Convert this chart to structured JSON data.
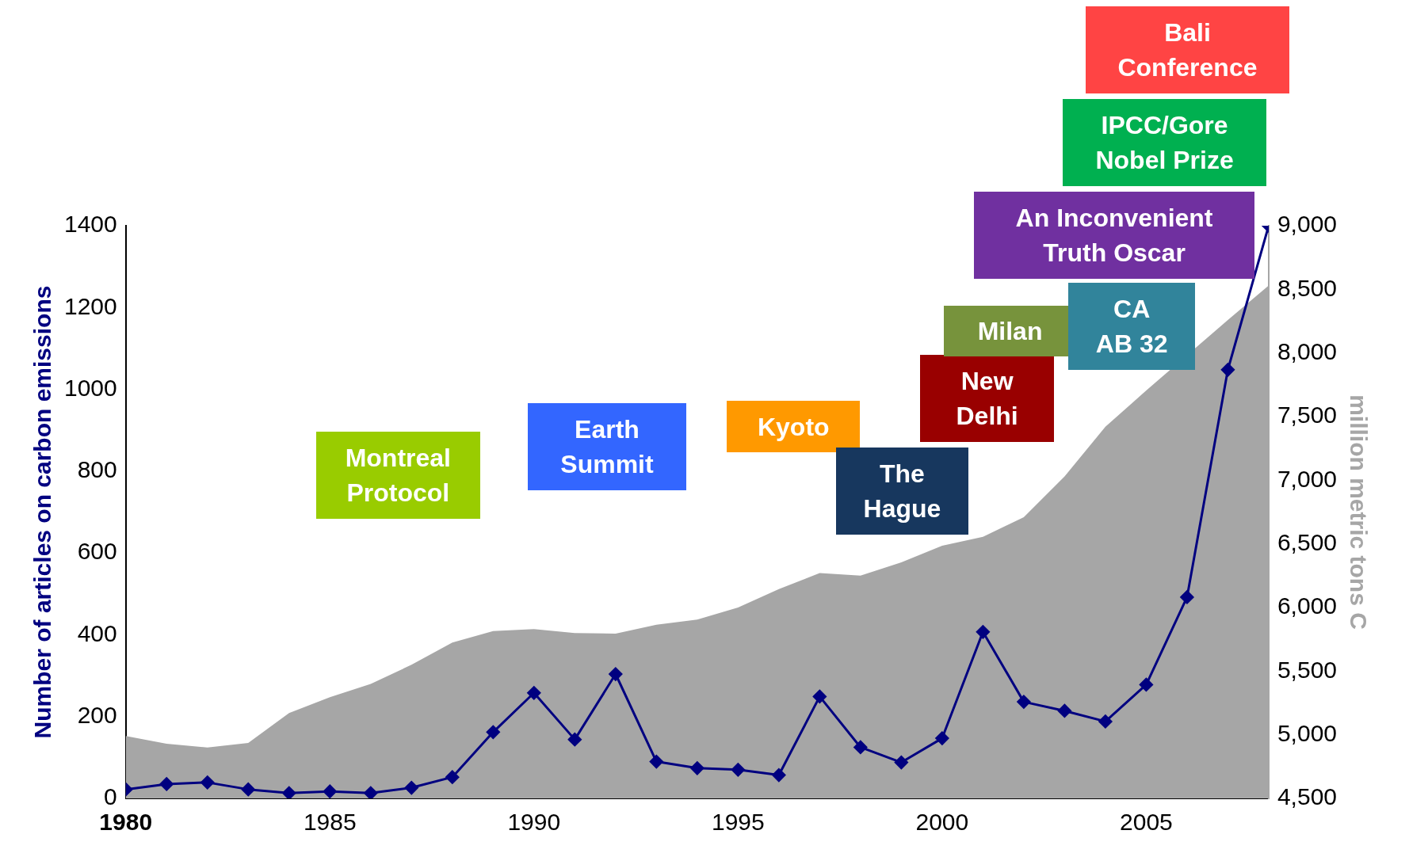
{
  "chart_data": {
    "type": "line",
    "ylabel": "Number of articles on carbon emissions",
    "y2label": "million metric tons C",
    "x": [
      1980,
      1981,
      1982,
      1983,
      1984,
      1985,
      1986,
      1987,
      1988,
      1989,
      1990,
      1991,
      1992,
      1993,
      1994,
      1995,
      1996,
      1997,
      1998,
      1999,
      2000,
      2001,
      2002,
      2003,
      2004,
      2005,
      2006,
      2007,
      2008
    ],
    "series": [
      {
        "type": "area",
        "axis": "y2",
        "color": "#a6a6a6",
        "values": [
          4990,
          4930,
          4900,
          4935,
          5170,
          5295,
          5400,
          5550,
          5725,
          5815,
          5830,
          5800,
          5795,
          5865,
          5905,
          6000,
          6145,
          6270,
          6250,
          6355,
          6485,
          6555,
          6710,
          7030,
          7420,
          7705,
          null,
          8260,
          8530
        ]
      },
      {
        "type": "line",
        "color": "#000080",
        "marker": "diamond",
        "values": [
          22,
          35,
          39,
          22,
          13,
          17,
          13,
          26,
          52,
          162,
          258,
          144,
          304,
          90,
          74,
          70,
          57,
          249,
          125,
          88,
          147,
          407,
          236,
          214,
          188,
          278,
          492,
          1048,
          1400
        ]
      }
    ],
    "xlim": [
      1980,
      2008
    ],
    "xticks": [
      1980,
      1985,
      1990,
      1995,
      2000,
      2005
    ],
    "ylim": [
      0,
      1400
    ],
    "yticks": [
      0,
      200,
      400,
      600,
      800,
      1000,
      1200,
      1400
    ],
    "y2lim": [
      4500,
      9000
    ],
    "y2ticks": [
      {
        "value": 4500,
        "label": "4,500"
      },
      {
        "value": 5000,
        "label": "5,000"
      },
      {
        "value": 5500,
        "label": "5,500"
      },
      {
        "value": 6000,
        "label": "6,000"
      },
      {
        "value": 6500,
        "label": "6,500"
      },
      {
        "value": 7000,
        "label": "7,000"
      },
      {
        "value": 7500,
        "label": "7,500"
      },
      {
        "value": 8000,
        "label": "8,000"
      },
      {
        "value": 8500,
        "label": "8,500"
      },
      {
        "value": 9000,
        "label": "9,000"
      }
    ],
    "annotations": [
      "Montreal Protocol",
      "Earth Summit",
      "Kyoto",
      "The Hague",
      "New Delhi",
      "Milan",
      "CA AB 32",
      "An Inconvenient Truth Oscar",
      "IPCC/Gore Nobel Prize",
      "Bali Conference"
    ],
    "grid": false,
    "legend": false
  }
}
